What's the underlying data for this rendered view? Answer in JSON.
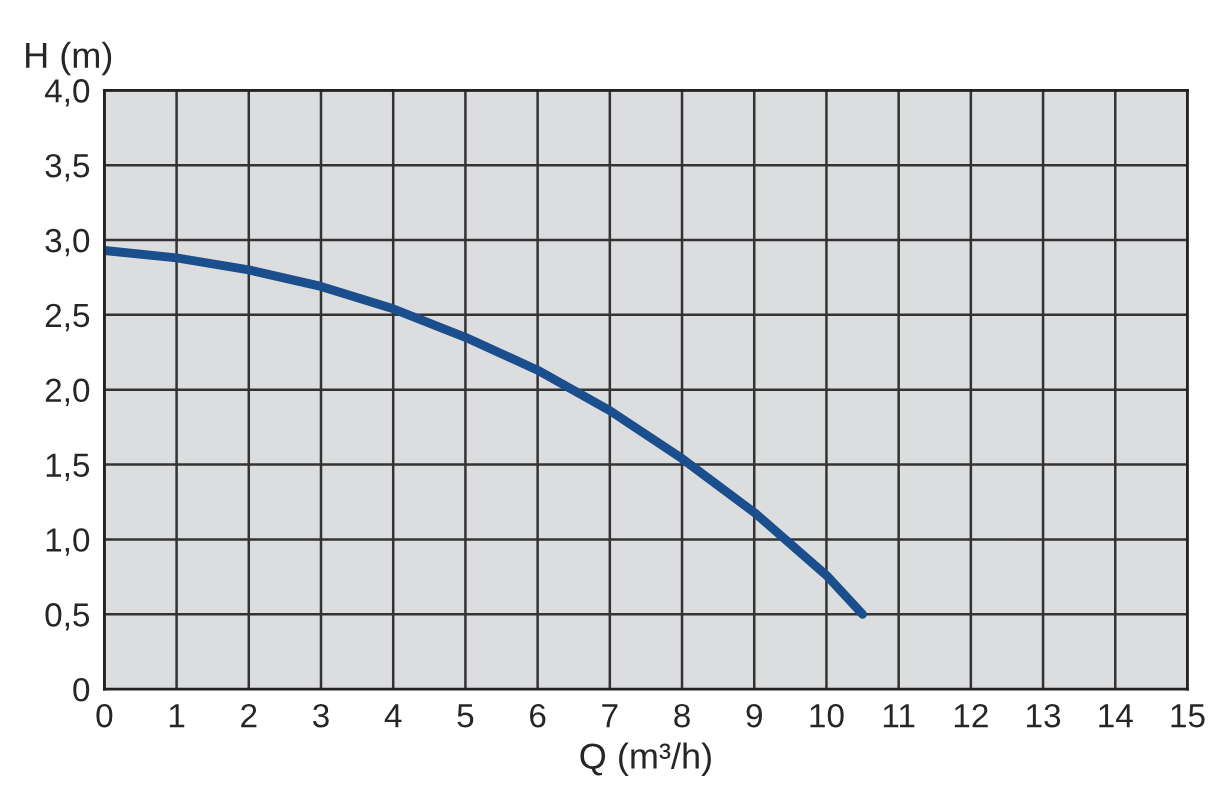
{
  "chart_data": {
    "type": "line",
    "xlabel": "Q (m³/h)",
    "ylabel": "H (m)",
    "x": [
      0,
      1,
      2,
      3,
      4,
      5,
      6,
      7,
      8,
      9,
      10,
      10.5
    ],
    "series": [
      {
        "color": "#1a4e8c",
        "values": [
          2.93,
          2.88,
          2.8,
          2.69,
          2.54,
          2.35,
          2.13,
          1.86,
          1.54,
          1.18,
          0.76,
          0.5
        ]
      }
    ],
    "xlim": [
      0,
      15
    ],
    "xticks": [
      0,
      1,
      2,
      3,
      4,
      5,
      6,
      7,
      8,
      9,
      10,
      11,
      12,
      13,
      14,
      15
    ],
    "ylim": [
      0,
      4
    ],
    "yticks": [
      {
        "value": 0,
        "label": "0"
      },
      {
        "value": 0.5,
        "label": "0,5"
      },
      {
        "value": 1,
        "label": "1,0"
      },
      {
        "value": 1.5,
        "label": "1,5"
      },
      {
        "value": 2,
        "label": "2,0"
      },
      {
        "value": 2.5,
        "label": "2,5"
      },
      {
        "value": 3,
        "label": "3,0"
      },
      {
        "value": 3.5,
        "label": "3,5"
      },
      {
        "value": 4,
        "label": "4,0"
      }
    ],
    "grid": true,
    "marker": "none",
    "line_style": "solid"
  }
}
